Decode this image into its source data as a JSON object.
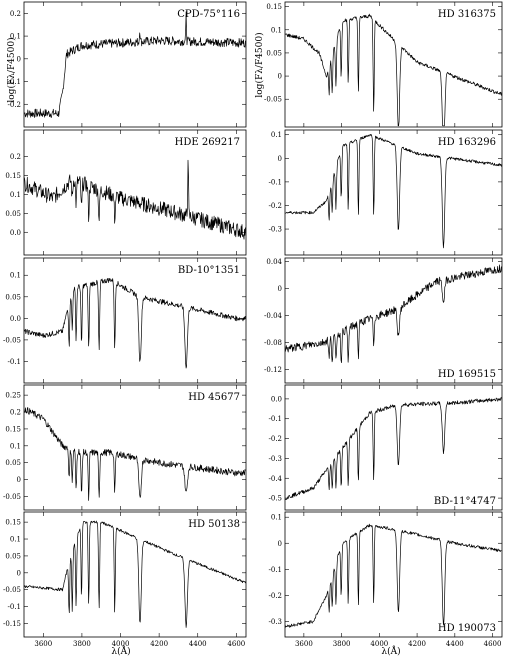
{
  "chart_data": [
    {
      "type": "line",
      "title": "CPD-75°116",
      "column": "left",
      "row": 0,
      "ylim": [
        -0.3,
        0.25
      ],
      "yticks": [
        -0.2,
        -0.1,
        0,
        0.1,
        0.2
      ],
      "ytick_labels": [
        "-0.2",
        "-0.1",
        "0",
        "0.1",
        "0.2"
      ],
      "continuum": [
        [
          3500,
          -0.24
        ],
        [
          3680,
          -0.24
        ],
        [
          3700,
          -0.15
        ],
        [
          3720,
          0.02
        ],
        [
          3800,
          0.06
        ],
        [
          4000,
          0.07
        ],
        [
          4200,
          0.08
        ],
        [
          4650,
          0.07
        ]
      ],
      "lines": [],
      "noise": 0.02,
      "spikes": [
        [
          4340,
          0.12
        ],
        [
          4100,
          0.06
        ]
      ]
    },
    {
      "type": "line",
      "title": "HDE 269217",
      "column": "left",
      "row": 1,
      "ylim": [
        -0.06,
        0.27
      ],
      "yticks": [
        0,
        0.05,
        0.1,
        0.15,
        0.2
      ],
      "ytick_labels": [
        "0.0",
        "0.05",
        "0.1",
        "0.15",
        "0.2"
      ],
      "continuum": [
        [
          3500,
          0.13
        ],
        [
          3650,
          0.09
        ],
        [
          3750,
          0.14
        ],
        [
          4000,
          0.09
        ],
        [
          4300,
          0.05
        ],
        [
          4650,
          0.0
        ]
      ],
      "lines": [
        [
          3750,
          0.05
        ],
        [
          3770,
          0.06
        ],
        [
          3798,
          0.07
        ],
        [
          3835,
          0.08
        ],
        [
          3889,
          0.08
        ],
        [
          3970,
          0.06
        ]
      ],
      "noise": 0.02,
      "spikes": [
        [
          4350,
          0.17
        ]
      ]
    },
    {
      "type": "line",
      "title": "BD-10°1351",
      "column": "left",
      "row": 2,
      "ylim": [
        -0.15,
        0.14
      ],
      "yticks": [
        -0.1,
        -0.05,
        0,
        0.05,
        0.1
      ],
      "ytick_labels": [
        "-0.1",
        "-0.05",
        "0.0",
        "0.05",
        "0.1"
      ],
      "continuum": [
        [
          3500,
          -0.03
        ],
        [
          3600,
          -0.04
        ],
        [
          3700,
          -0.03
        ],
        [
          3750,
          0.07
        ],
        [
          3950,
          0.09
        ],
        [
          4100,
          0.05
        ],
        [
          4300,
          0.03
        ],
        [
          4600,
          0.0
        ]
      ],
      "lines": [
        [
          3734,
          0.1
        ],
        [
          3750,
          0.1
        ],
        [
          3770,
          0.12
        ],
        [
          3798,
          0.14
        ],
        [
          3835,
          0.15
        ],
        [
          3889,
          0.16
        ],
        [
          3970,
          0.16
        ],
        [
          4101,
          0.15
        ],
        [
          4340,
          0.14
        ]
      ],
      "noise": 0.006,
      "spikes": []
    },
    {
      "type": "line",
      "title": "HD 45677",
      "column": "left",
      "row": 3,
      "ylim": [
        -0.09,
        0.28
      ],
      "yticks": [
        -0.05,
        0,
        0.05,
        0.1,
        0.15,
        0.2,
        0.25
      ],
      "ytick_labels": [
        "-0.05",
        "0",
        "0.05",
        "0.1",
        "0.15",
        "0.2",
        "0.25"
      ],
      "continuum": [
        [
          3500,
          0.21
        ],
        [
          3600,
          0.18
        ],
        [
          3700,
          0.1
        ],
        [
          3800,
          0.08
        ],
        [
          3950,
          0.08
        ],
        [
          4200,
          0.05
        ],
        [
          4600,
          0.02
        ]
      ],
      "lines": [
        [
          3734,
          0.09
        ],
        [
          3750,
          0.1
        ],
        [
          3770,
          0.12
        ],
        [
          3798,
          0.13
        ],
        [
          3835,
          0.14
        ],
        [
          3889,
          0.14
        ],
        [
          3970,
          0.12
        ],
        [
          4101,
          0.12
        ],
        [
          4340,
          0.08
        ]
      ],
      "noise": 0.01,
      "spikes": []
    },
    {
      "type": "line",
      "title": "HD 50138",
      "column": "left",
      "row": 4,
      "ylim": [
        -0.19,
        0.18
      ],
      "yticks": [
        -0.15,
        -0.1,
        -0.05,
        0,
        0.05,
        0.1,
        0.15
      ],
      "ytick_labels": [
        "-0.15",
        "-0.1",
        "-0.05",
        "0",
        "0.05",
        "0.1",
        "0.15"
      ],
      "continuum": [
        [
          3500,
          -0.04
        ],
        [
          3700,
          -0.05
        ],
        [
          3740,
          0.05
        ],
        [
          3800,
          0.15
        ],
        [
          3900,
          0.15
        ],
        [
          4100,
          0.1
        ],
        [
          4300,
          0.05
        ],
        [
          4650,
          -0.03
        ]
      ],
      "lines": [
        [
          3734,
          0.16
        ],
        [
          3750,
          0.18
        ],
        [
          3770,
          0.2
        ],
        [
          3798,
          0.22
        ],
        [
          3835,
          0.24
        ],
        [
          3889,
          0.26
        ],
        [
          3970,
          0.25
        ],
        [
          4101,
          0.25
        ],
        [
          4340,
          0.2
        ]
      ],
      "noise": 0.004,
      "spikes": []
    },
    {
      "type": "line",
      "title": "HD 316375",
      "column": "right",
      "row": 0,
      "ylim": [
        -0.11,
        0.16
      ],
      "yticks": [
        -0.05,
        0,
        0.05,
        0.1,
        0.15
      ],
      "ytick_labels": [
        "-0.05",
        "0",
        "0.05",
        "0.1",
        "0.15"
      ],
      "continuum": [
        [
          3500,
          0.09
        ],
        [
          3600,
          0.08
        ],
        [
          3680,
          0.05
        ],
        [
          3720,
          0.0
        ],
        [
          3800,
          0.12
        ],
        [
          3950,
          0.13
        ],
        [
          4200,
          0.03
        ],
        [
          4650,
          -0.04
        ]
      ],
      "lines": [
        [
          3734,
          0.06
        ],
        [
          3750,
          0.08
        ],
        [
          3770,
          0.1
        ],
        [
          3798,
          0.12
        ],
        [
          3835,
          0.14
        ],
        [
          3889,
          0.16
        ],
        [
          3970,
          0.2
        ],
        [
          4101,
          0.19
        ],
        [
          4340,
          0.17
        ]
      ],
      "noise": 0.004,
      "spikes": []
    },
    {
      "type": "line",
      "title": "HD 163296",
      "column": "right",
      "row": 1,
      "ylim": [
        -0.41,
        0.12
      ],
      "yticks": [
        -0.3,
        -0.2,
        -0.1,
        0,
        0.1
      ],
      "ytick_labels": [
        "-0.3",
        "-0.2",
        "-0.1",
        "0",
        "0.1"
      ],
      "continuum": [
        [
          3500,
          -0.23
        ],
        [
          3650,
          -0.23
        ],
        [
          3720,
          -0.18
        ],
        [
          3800,
          0.05
        ],
        [
          3950,
          0.1
        ],
        [
          4200,
          0.02
        ],
        [
          4650,
          -0.03
        ]
      ],
      "lines": [
        [
          3734,
          0.12
        ],
        [
          3750,
          0.14
        ],
        [
          3770,
          0.18
        ],
        [
          3798,
          0.22
        ],
        [
          3835,
          0.28
        ],
        [
          3889,
          0.32
        ],
        [
          3970,
          0.34
        ],
        [
          4101,
          0.36
        ],
        [
          4340,
          0.38
        ]
      ],
      "noise": 0.006,
      "spikes": []
    },
    {
      "type": "line",
      "title": "HD 169515",
      "column": "right",
      "row": 2,
      "ylim": [
        -0.14,
        0.045
      ],
      "yticks": [
        -0.12,
        -0.08,
        -0.04,
        0,
        0.04
      ],
      "ytick_labels": [
        "-0.12",
        "-0.08",
        "-0.04",
        "0",
        "0.04"
      ],
      "continuum": [
        [
          3500,
          -0.09
        ],
        [
          3700,
          -0.08
        ],
        [
          3900,
          -0.05
        ],
        [
          4100,
          -0.03
        ],
        [
          4300,
          0.01
        ],
        [
          4650,
          0.03
        ]
      ],
      "lines": [
        [
          3734,
          0.03
        ],
        [
          3750,
          0.035
        ],
        [
          3770,
          0.04
        ],
        [
          3798,
          0.045
        ],
        [
          3835,
          0.05
        ],
        [
          3889,
          0.05
        ],
        [
          3970,
          0.04
        ],
        [
          4101,
          0.04
        ],
        [
          4340,
          0.03
        ]
      ],
      "noise": 0.006,
      "spikes": []
    },
    {
      "type": "line",
      "title": "HD 169515",
      "column": "right",
      "row": 2.5,
      "hidden": true,
      "ylim": [
        0,
        1
      ],
      "yticks": [],
      "ytick_labels": [],
      "continuum": [],
      "lines": [],
      "noise": 0,
      "spikes": []
    },
    {
      "type": "line",
      "title": "BD-11°4747",
      "column": "right",
      "row": 3,
      "ylim": [
        -0.56,
        0.07
      ],
      "yticks": [
        -0.5,
        -0.4,
        -0.3,
        -0.2,
        -0.1,
        0
      ],
      "ytick_labels": [
        "-0.5",
        "-0.4",
        "-0.3",
        "-0.2",
        "-0.1",
        "0.0"
      ],
      "continuum": [
        [
          3500,
          -0.5
        ],
        [
          3650,
          -0.45
        ],
        [
          3800,
          -0.25
        ],
        [
          3950,
          -0.07
        ],
        [
          4100,
          -0.03
        ],
        [
          4400,
          -0.02
        ],
        [
          4650,
          0.0
        ]
      ],
      "lines": [
        [
          3734,
          0.12
        ],
        [
          3750,
          0.14
        ],
        [
          3770,
          0.16
        ],
        [
          3798,
          0.2
        ],
        [
          3835,
          0.24
        ],
        [
          3889,
          0.28
        ],
        [
          3970,
          0.35
        ],
        [
          4101,
          0.3
        ],
        [
          4340,
          0.25
        ]
      ],
      "noise": 0.01,
      "spikes": []
    },
    {
      "type": "line",
      "title": "HD 190073",
      "column": "right",
      "row": 4,
      "ylim": [
        -0.36,
        0.12
      ],
      "yticks": [
        -0.3,
        -0.2,
        -0.1,
        0,
        0.1
      ],
      "ytick_labels": [
        "-0.3",
        "-0.2",
        "-0.1",
        "0",
        "0.1"
      ],
      "continuum": [
        [
          3500,
          -0.32
        ],
        [
          3650,
          -0.3
        ],
        [
          3720,
          -0.2
        ],
        [
          3800,
          0.0
        ],
        [
          3950,
          0.07
        ],
        [
          4100,
          0.05
        ],
        [
          4400,
          0.0
        ],
        [
          4650,
          -0.03
        ]
      ],
      "lines": [
        [
          3734,
          0.1
        ],
        [
          3750,
          0.12
        ],
        [
          3770,
          0.16
        ],
        [
          3798,
          0.2
        ],
        [
          3835,
          0.25
        ],
        [
          3889,
          0.28
        ],
        [
          3970,
          0.3
        ],
        [
          4101,
          0.32
        ],
        [
          4340,
          0.33
        ]
      ],
      "noise": 0.006,
      "spikes": []
    }
  ],
  "shared": {
    "xlim": [
      3500,
      4650
    ],
    "xticks": [
      3600,
      3800,
      4000,
      4200,
      4400,
      4600
    ],
    "xtick_labels": [
      "3600",
      "3800",
      "4000",
      "4200",
      "4400",
      "4600"
    ],
    "xlabel": "λ(Å)",
    "ylabel": "log(Fλ/F4500)"
  }
}
